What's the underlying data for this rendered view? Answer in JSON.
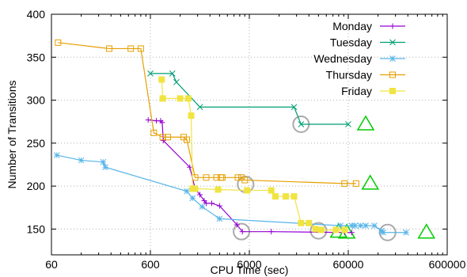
{
  "chart_data": {
    "type": "line",
    "title": "",
    "xlabel": "CPU Time (sec)",
    "ylabel": "Number of Transitions",
    "x_scale": "log",
    "xlim": [
      60,
      600000
    ],
    "ylim": [
      120,
      400
    ],
    "x_ticks": [
      60,
      600,
      6000,
      60000,
      600000
    ],
    "x_tick_labels": [
      "60",
      "600",
      "6000",
      "60000",
      "600000"
    ],
    "y_ticks": [
      150,
      200,
      250,
      300,
      350,
      400
    ],
    "y_tick_labels": [
      "150",
      "200",
      "250",
      "300",
      "350",
      "400"
    ],
    "grid": true,
    "legend_position": "top-right",
    "series": [
      {
        "name": "Monday",
        "color": "#9400d3",
        "marker": "plus",
        "points": [
          [
            570,
            277
          ],
          [
            690,
            276
          ],
          [
            760,
            276
          ],
          [
            790,
            274
          ],
          [
            810,
            253
          ],
          [
            1500,
            222
          ],
          [
            1700,
            197
          ],
          [
            1900,
            190
          ],
          [
            2100,
            183
          ],
          [
            2200,
            180
          ],
          [
            2500,
            180
          ],
          [
            3000,
            177
          ],
          [
            4500,
            155
          ],
          [
            5100,
            147
          ],
          [
            10000,
            147
          ],
          [
            55000,
            146
          ],
          [
            65000,
            146
          ]
        ]
      },
      {
        "name": "Tuesday",
        "color": "#009e73",
        "marker": "x",
        "points": [
          [
            600,
            331
          ],
          [
            1000,
            331
          ],
          [
            1100,
            321
          ],
          [
            1900,
            292
          ],
          [
            17000,
            292
          ],
          [
            20000,
            272
          ],
          [
            60000,
            272
          ]
        ]
      },
      {
        "name": "Wednesday",
        "color": "#56b4e9",
        "marker": "asterisk",
        "points": [
          [
            68,
            236
          ],
          [
            120,
            230
          ],
          [
            200,
            228
          ],
          [
            210,
            222
          ],
          [
            1400,
            194
          ],
          [
            1600,
            186
          ],
          [
            2000,
            176
          ],
          [
            3000,
            162
          ],
          [
            50000,
            154
          ],
          [
            65000,
            154
          ],
          [
            70000,
            154
          ],
          [
            80000,
            154
          ],
          [
            90000,
            154
          ],
          [
            110000,
            154
          ],
          [
            130000,
            148
          ],
          [
            135000,
            146
          ],
          [
            230000,
            146
          ]
        ]
      },
      {
        "name": "Thursday",
        "color": "#e69f00",
        "marker": "square",
        "points": [
          [
            70,
            367
          ],
          [
            230,
            360
          ],
          [
            380,
            360
          ],
          [
            480,
            360
          ],
          [
            650,
            262
          ],
          [
            800,
            257
          ],
          [
            900,
            257
          ],
          [
            1300,
            257
          ],
          [
            1400,
            254
          ],
          [
            1700,
            210
          ],
          [
            2200,
            210
          ],
          [
            2800,
            210
          ],
          [
            3100,
            210
          ],
          [
            3200,
            210
          ],
          [
            4600,
            210
          ],
          [
            5000,
            210
          ],
          [
            5400,
            207
          ],
          [
            55000,
            203
          ],
          [
            72000,
            203
          ]
        ]
      },
      {
        "name": "Friday",
        "color": "#f0e442",
        "marker": "filled-square",
        "points": [
          [
            780,
            324
          ],
          [
            800,
            302
          ],
          [
            1200,
            302
          ],
          [
            1450,
            302
          ],
          [
            1550,
            282
          ],
          [
            1600,
            197
          ],
          [
            1700,
            197
          ],
          [
            2900,
            196
          ],
          [
            5700,
            195
          ],
          [
            10000,
            195
          ],
          [
            11000,
            188
          ],
          [
            14000,
            188
          ],
          [
            17000,
            188
          ],
          [
            20000,
            157
          ],
          [
            24000,
            157
          ],
          [
            28000,
            150
          ],
          [
            32000,
            149
          ],
          [
            45000,
            149
          ],
          [
            55000,
            149
          ]
        ]
      }
    ],
    "annotations": {
      "circles": [
        [
          5000,
          147
        ],
        [
          5500,
          202
        ],
        [
          20000,
          272
        ],
        [
          30000,
          148
        ],
        [
          150000,
          146
        ]
      ],
      "triangles": [
        [
          48000,
          147
        ],
        [
          58000,
          146
        ],
        [
          90000,
          272
        ],
        [
          100000,
          203
        ],
        [
          370000,
          146
        ]
      ],
      "circle_color": "#aaaaaa",
      "triangle_color": "#00cc00"
    }
  }
}
